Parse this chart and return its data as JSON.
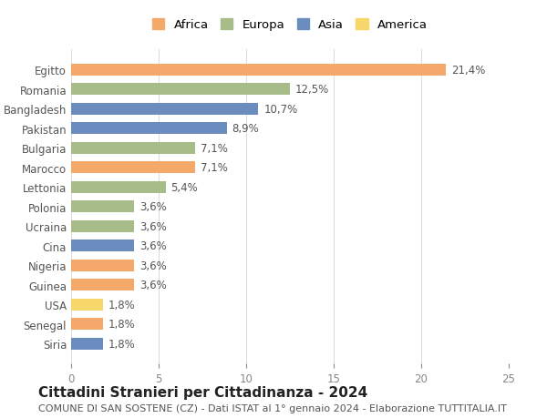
{
  "countries": [
    "Egitto",
    "Romania",
    "Bangladesh",
    "Pakistan",
    "Bulgaria",
    "Marocco",
    "Lettonia",
    "Polonia",
    "Ucraina",
    "Cina",
    "Nigeria",
    "Guinea",
    "USA",
    "Senegal",
    "Siria"
  ],
  "values": [
    21.4,
    12.5,
    10.7,
    8.9,
    7.1,
    7.1,
    5.4,
    3.6,
    3.6,
    3.6,
    3.6,
    3.6,
    1.8,
    1.8,
    1.8
  ],
  "labels": [
    "21,4%",
    "12,5%",
    "10,7%",
    "8,9%",
    "7,1%",
    "7,1%",
    "5,4%",
    "3,6%",
    "3,6%",
    "3,6%",
    "3,6%",
    "3,6%",
    "1,8%",
    "1,8%",
    "1,8%"
  ],
  "continents": [
    "Africa",
    "Europa",
    "Asia",
    "Asia",
    "Europa",
    "Africa",
    "Europa",
    "Europa",
    "Europa",
    "Asia",
    "Africa",
    "Africa",
    "America",
    "Africa",
    "Asia"
  ],
  "colors": {
    "Africa": "#F4A96A",
    "Europa": "#A8BC8A",
    "Asia": "#6B8CBE",
    "America": "#F7D76A"
  },
  "legend_order": [
    "Africa",
    "Europa",
    "Asia",
    "America"
  ],
  "title": "Cittadini Stranieri per Cittadinanza - 2024",
  "subtitle": "COMUNE DI SAN SOSTENE (CZ) - Dati ISTAT al 1° gennaio 2024 - Elaborazione TUTTITALIA.IT",
  "xlim": [
    0,
    25
  ],
  "xticks": [
    0,
    5,
    10,
    15,
    20,
    25
  ],
  "bg_color": "#ffffff",
  "grid_color": "#dddddd",
  "bar_height": 0.6,
  "label_fontsize": 8.5,
  "tick_fontsize": 8.5,
  "title_fontsize": 11,
  "subtitle_fontsize": 8
}
